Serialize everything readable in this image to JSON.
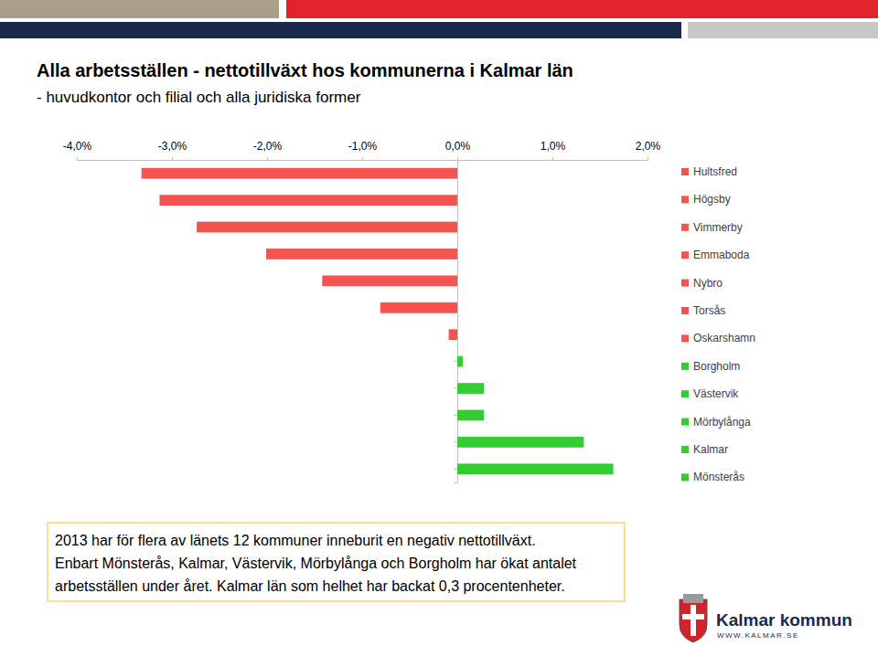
{
  "chart_data": {
    "type": "bar",
    "title": "Alla arbetsställen - nettotillväxt hos kommunerna i Kalmar län",
    "subtitle": "- huvudkontor och filial och alla juridiska former",
    "orientation": "horizontal",
    "categories": [
      "Hultsfred",
      "Högsby",
      "Vimmerby",
      "Emmaboda",
      "Nybro",
      "Torsås",
      "Oskarshamn",
      "Borgholm",
      "Västervik",
      "Mörbylånga",
      "Kalmar",
      "Mönsterås"
    ],
    "values": [
      -3.32,
      -3.13,
      -2.74,
      -2.01,
      -1.42,
      -0.81,
      -0.09,
      0.06,
      0.28,
      0.28,
      1.33,
      1.64
    ],
    "colors": [
      "#f4534f",
      "#f4534f",
      "#f4534f",
      "#f4534f",
      "#f4534f",
      "#f4534f",
      "#f4534f",
      "#33cc33",
      "#33cc33",
      "#33cc33",
      "#33cc33",
      "#33cc33"
    ],
    "xlim": [
      -4,
      2
    ],
    "xticks": [
      {
        "value": -4,
        "label": "-4,0%"
      },
      {
        "value": -3,
        "label": "-3,0%"
      },
      {
        "value": -2,
        "label": "-2,0%"
      },
      {
        "value": -1,
        "label": "-1,0%"
      },
      {
        "value": 0,
        "label": "0,0%"
      },
      {
        "value": 1,
        "label": "1,0%"
      },
      {
        "value": 2,
        "label": "2,0%"
      }
    ],
    "tick_labels": "x",
    "grid": false,
    "legend": "right",
    "annotations": [
      "2013 har för flera av länets 12 kommuner inneburit en negativ nettotillväxt.",
      "Enbart Mönsterås, Kalmar, Västervik, Mörbylånga och Borgholm har ökat antalet",
      "arbetsställen under året. Kalmar län som helhet har backat 0,3 procentenheter."
    ]
  },
  "logo": {
    "name": "Kalmar kommun",
    "url": "WWW.KALMAR.SE"
  }
}
